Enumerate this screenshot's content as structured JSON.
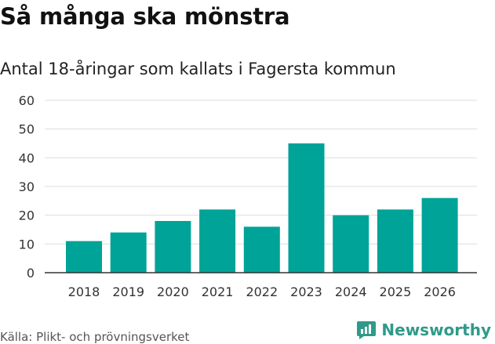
{
  "chart_data": {
    "type": "bar",
    "title": "Så många ska mönstra",
    "subtitle": "Antal 18-åringar som kallats i Fagersta kommun",
    "categories": [
      "2018",
      "2019",
      "2020",
      "2021",
      "2022",
      "2023",
      "2024",
      "2025",
      "2026"
    ],
    "values": [
      11,
      14,
      18,
      22,
      16,
      45,
      20,
      22,
      26
    ],
    "xlabel": "",
    "ylabel": "",
    "ylim": [
      0,
      60
    ],
    "yticks": [
      0,
      10,
      20,
      30,
      40,
      50,
      60
    ],
    "grid": true,
    "bar_color": "#00a398"
  },
  "source": "Källa: Plikt- och prövningsverket",
  "brand": {
    "name": "Newsworthy",
    "icon": "newsworthy-logo-icon",
    "color": "#2f9a8a"
  }
}
